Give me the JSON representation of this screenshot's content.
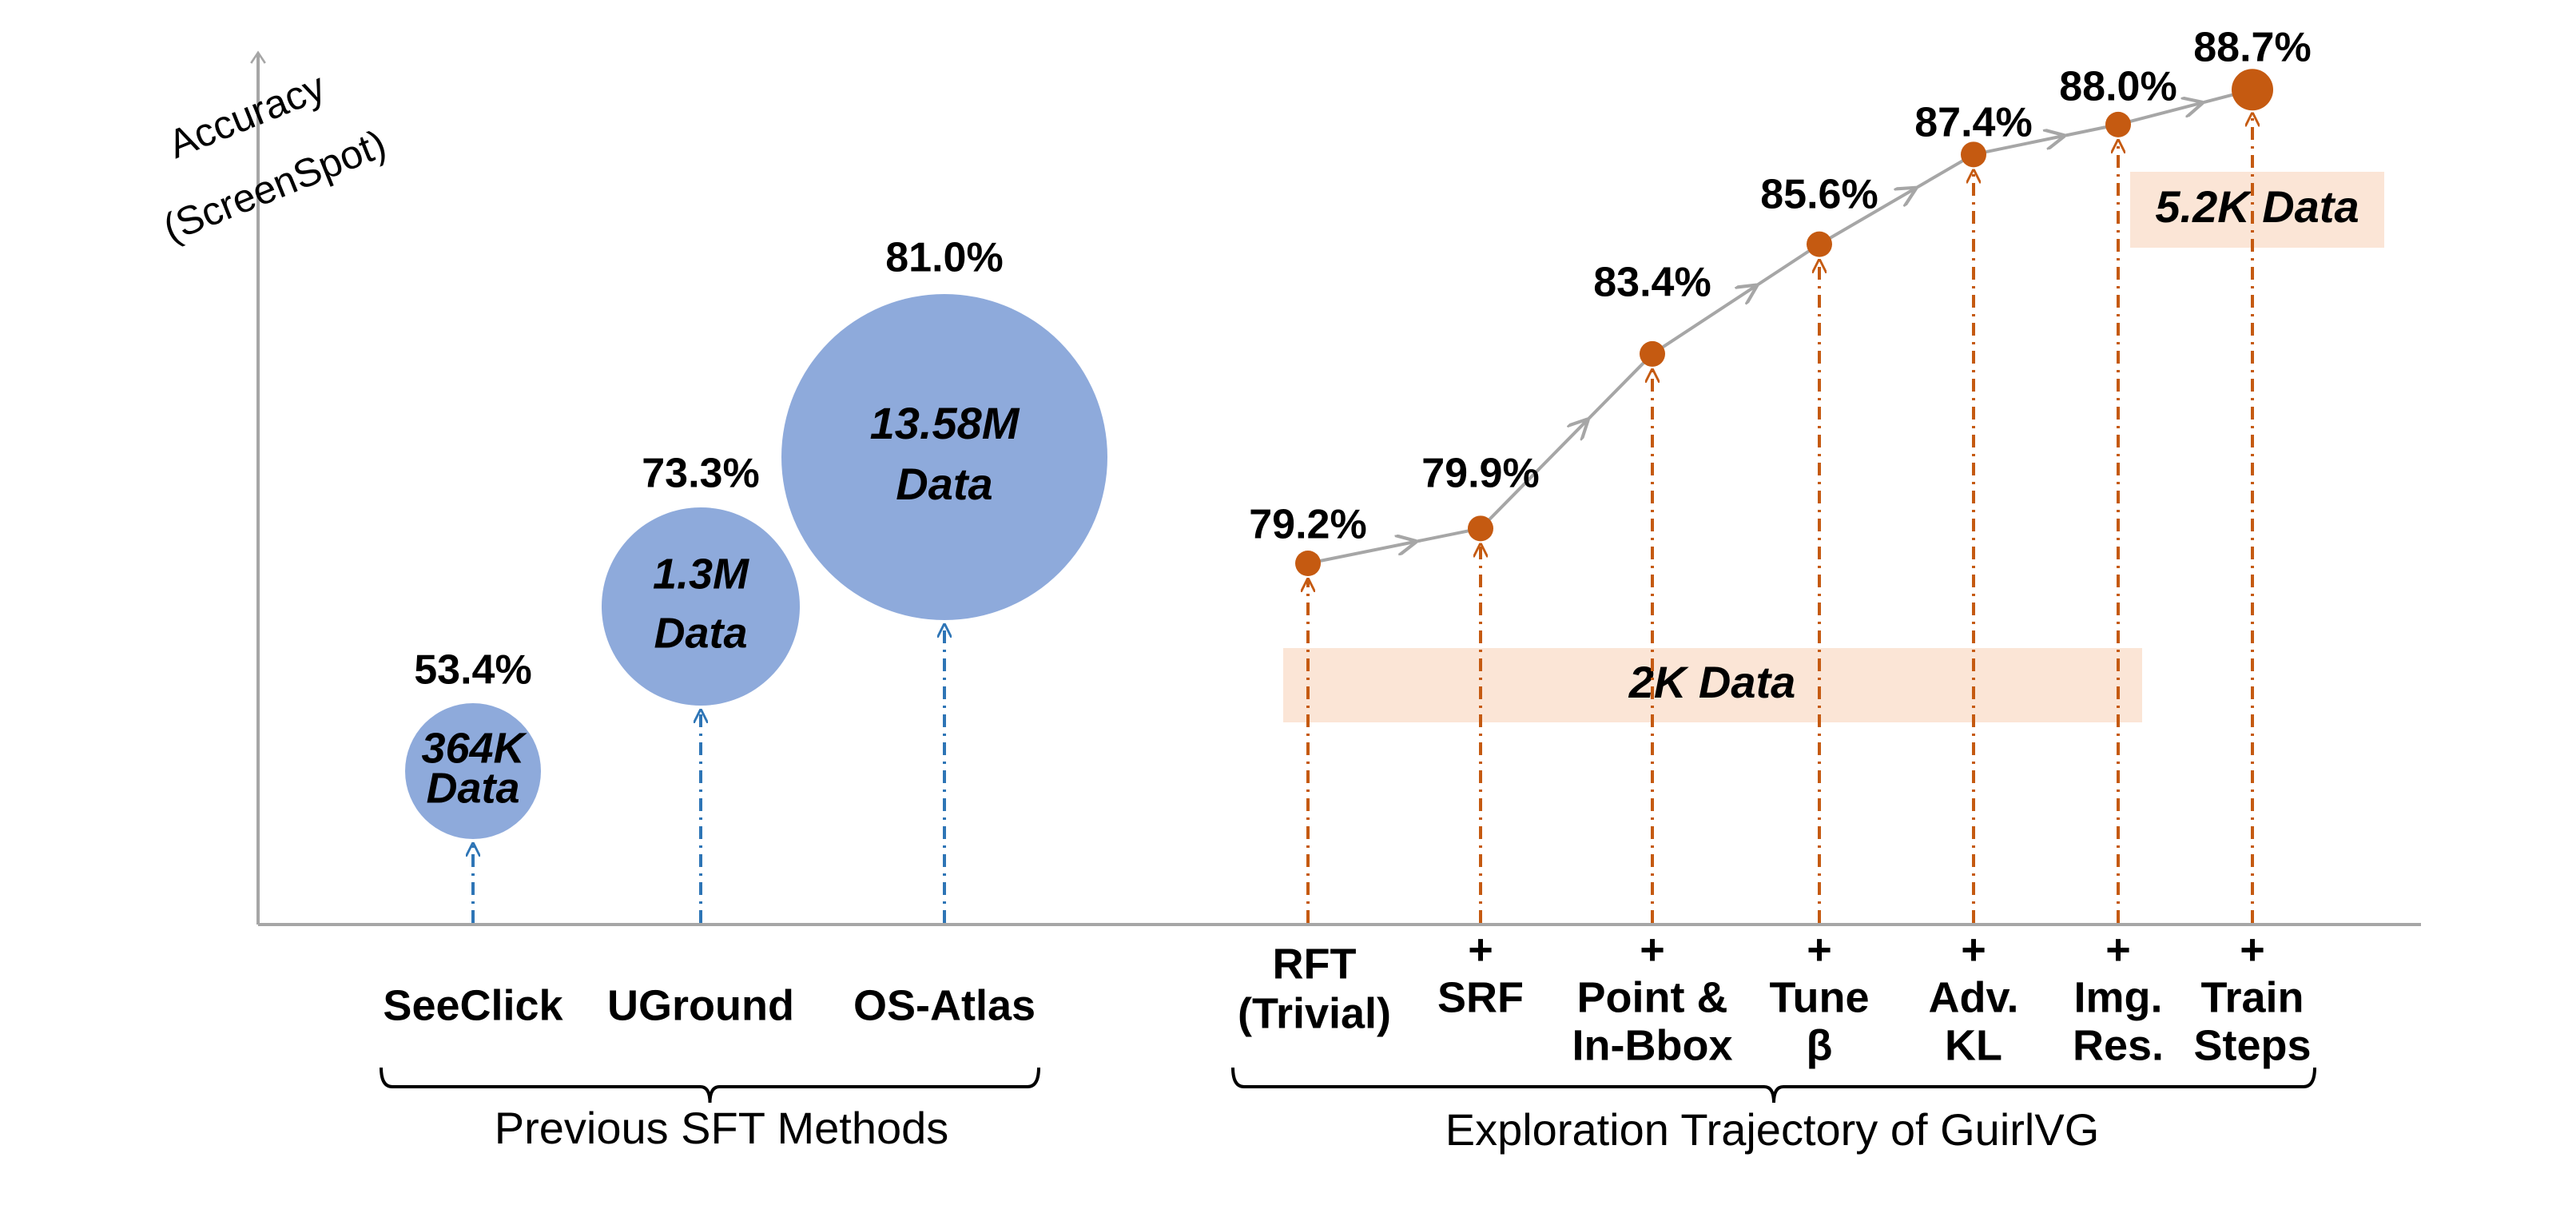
{
  "chart_data": {
    "type": "scatter",
    "ylabel_lines": [
      "Accuracy",
      "(ScreenSpot)"
    ],
    "colors": {
      "sft_fill": "#8eaadb",
      "sft_stem": "#2e75b6",
      "rl_point": "#c55a11",
      "rl_line": "#a6a6a6",
      "band": "#fbe5d6",
      "axis": "#a6a6a6",
      "text": "#000000"
    },
    "groups": [
      {
        "name": "Previous SFT Methods"
      },
      {
        "name": "Exploration Trajectory of GuirlVG"
      }
    ],
    "sft_methods": [
      {
        "name": "SeeClick",
        "accuracy": 53.4,
        "accuracy_label": "53.4%",
        "data_label_lines": [
          "364K",
          "Data"
        ]
      },
      {
        "name": "UGround",
        "accuracy": 73.3,
        "accuracy_label": "73.3%",
        "data_label_lines": [
          "1.3M",
          "Data"
        ]
      },
      {
        "name": "OS-Atlas",
        "accuracy": 81.0,
        "accuracy_label": "81.0%",
        "data_label_lines": [
          "13.58M",
          "Data"
        ]
      }
    ],
    "trajectory": [
      {
        "label_lines": [
          "RFT",
          "(Trivial)"
        ],
        "accuracy": 79.2,
        "accuracy_label": "79.2%"
      },
      {
        "label_lines": [
          "+",
          "SRF"
        ],
        "accuracy": 79.9,
        "accuracy_label": "79.9%"
      },
      {
        "label_lines": [
          "+",
          "Point &",
          "In-Bbox"
        ],
        "accuracy": 83.4,
        "accuracy_label": "83.4%"
      },
      {
        "label_lines": [
          "+",
          "Tune",
          "β"
        ],
        "accuracy": 85.6,
        "accuracy_label": "85.6%"
      },
      {
        "label_lines": [
          "+",
          "Adv.",
          "KL"
        ],
        "accuracy": 87.4,
        "accuracy_label": "87.4%"
      },
      {
        "label_lines": [
          "+",
          "Img.",
          "Res."
        ],
        "accuracy": 88.0,
        "accuracy_label": "88.0%"
      },
      {
        "label_lines": [
          "+",
          "Train",
          "Steps"
        ],
        "accuracy": 88.7,
        "accuracy_label": "88.7%"
      }
    ],
    "annotations": [
      {
        "text": "2K  Data"
      },
      {
        "text": "5.2K Data"
      }
    ]
  }
}
